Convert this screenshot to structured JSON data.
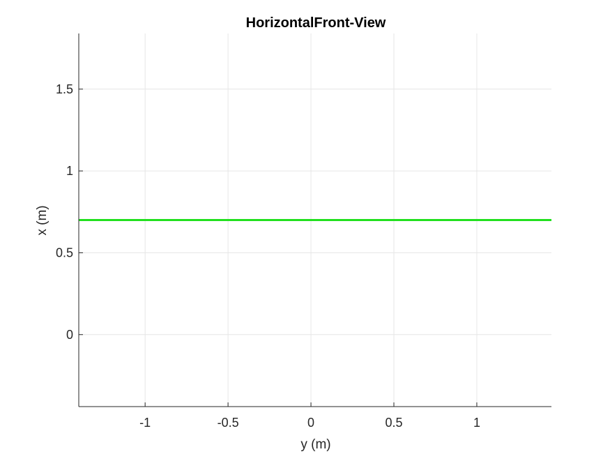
{
  "chart_data": {
    "type": "line",
    "title": "HorizontalFront-View",
    "xlabel": "y (m)",
    "ylabel": "x (m)",
    "xlim": [
      -1.4,
      1.45
    ],
    "ylim": [
      -0.44,
      1.84
    ],
    "xticks": [
      -1,
      -0.5,
      0,
      0.5,
      1
    ],
    "xtick_labels": [
      "-1",
      "-0.5",
      "0",
      "0.5",
      "1"
    ],
    "yticks": [
      0,
      0.5,
      1,
      1.5
    ],
    "ytick_labels": [
      "0",
      "0.5",
      "1",
      "1.5"
    ],
    "grid": true,
    "series": [
      {
        "x": [
          -1.4,
          1.45
        ],
        "y": [
          0.7,
          0.7
        ],
        "color": "#22e01f"
      }
    ]
  }
}
